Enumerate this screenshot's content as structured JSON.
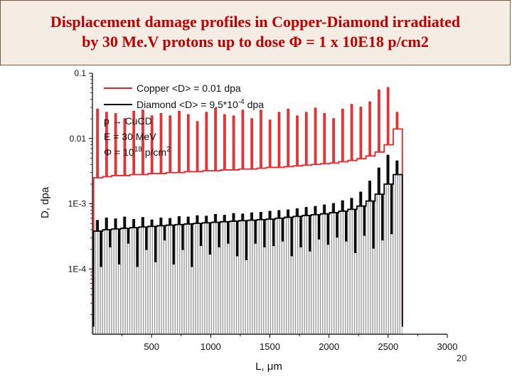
{
  "slide": {
    "title_line1": "Displacement damage profiles in Copper-Diamond irradiated",
    "title_line2": "by 30 Me.V protons up to dose Φ = 1 x 10E18 p/cm2",
    "page_number": "20"
  },
  "colors": {
    "copper": "#e8262a",
    "diamond": "#000000",
    "bar_fill": "#bfbfbf",
    "title": "#c00000"
  },
  "chart_data": {
    "type": "line",
    "xlabel": "L, μm",
    "ylabel": "D, dpa",
    "xlim": [
      0,
      3000
    ],
    "ylim": [
      1e-05,
      0.1
    ],
    "yscale": "log",
    "x_ticks": [
      500,
      1000,
      1500,
      2000,
      2500,
      3000
    ],
    "x_tick_labels": [
      "500",
      "1000",
      "1500",
      "2000",
      "2500",
      "3000"
    ],
    "y_ticks": [
      0.0001,
      0.001,
      0.01,
      0.1
    ],
    "y_tick_labels": [
      "1E-4",
      "1E-3",
      "0.01",
      "0.1"
    ],
    "legend": {
      "position": "top-left",
      "series_labels": [
        "Copper <D> = 0.01 dpa",
        "Diamond <D> = 9.5*10",
        "-4",
        " dpa"
      ],
      "notes": [
        "p → CuCD",
        "E = 30 MeV",
        "Φ = 10",
        "18",
        " p/cm",
        "2"
      ]
    },
    "series": [
      {
        "name": "Copper",
        "color": "#e8262a",
        "base": [
          0.0025,
          0.0026,
          0.0027,
          0.0027,
          0.0028,
          0.0028,
          0.0029,
          0.0029,
          0.003,
          0.003,
          0.0031,
          0.0031,
          0.0032,
          0.0032,
          0.0033,
          0.0033,
          0.0034,
          0.0034,
          0.0035,
          0.0036,
          0.0036,
          0.0037,
          0.0038,
          0.0039,
          0.004,
          0.0041,
          0.0042,
          0.0044,
          0.0046,
          0.0049,
          0.0054,
          0.0062,
          0.008,
          0.014
        ],
        "peaks": [
          0.028,
          0.025,
          0.024,
          0.02,
          0.026,
          0.027,
          0.022,
          0.024,
          0.022,
          0.026,
          0.023,
          0.018,
          0.025,
          0.029,
          0.023,
          0.022,
          0.027,
          0.02,
          0.027,
          0.019,
          0.025,
          0.028,
          0.022,
          0.025,
          0.029,
          0.024,
          0.02,
          0.028,
          0.033,
          0.03,
          0.036,
          0.055,
          0.06,
          0.025
        ]
      },
      {
        "name": "Diamond",
        "color": "#000000",
        "base": [
          0.00038,
          0.0004,
          0.00041,
          0.00042,
          0.00043,
          0.00044,
          0.00045,
          0.00046,
          0.00047,
          0.00048,
          0.00049,
          0.0005,
          0.00051,
          0.00052,
          0.00053,
          0.00054,
          0.00055,
          0.00056,
          0.00057,
          0.00058,
          0.0006,
          0.00062,
          0.00064,
          0.00066,
          0.00068,
          0.0007,
          0.00073,
          0.00077,
          0.00082,
          0.00092,
          0.0011,
          0.0014,
          0.002,
          0.0028
        ],
        "peaks": [
          0.00055,
          0.0006,
          0.00058,
          0.00062,
          0.00057,
          0.00061,
          0.00056,
          0.0006,
          0.00059,
          0.00063,
          0.00062,
          0.00065,
          0.00064,
          0.00068,
          0.00066,
          0.0007,
          0.00069,
          0.00072,
          0.00073,
          0.00076,
          0.00078,
          0.0008,
          0.00083,
          0.00087,
          0.0009,
          0.00095,
          0.001,
          0.0011,
          0.0012,
          0.0015,
          0.0022,
          0.0035,
          0.0055,
          0.0045
        ],
        "dips": [
          0.00011,
          0.00022,
          0.00012,
          0.00025,
          0.00011,
          0.0002,
          0.00013,
          0.00028,
          0.00012,
          0.0002,
          0.00011,
          0.00023,
          0.00017,
          0.00022,
          0.00025,
          0.00016,
          0.00014,
          0.00025,
          0.00022,
          0.00023,
          0.00027,
          0.00016,
          0.00022,
          0.00019,
          0.00029,
          0.00024,
          0.00031,
          0.00027,
          0.00018,
          0.00033,
          0.00021,
          0.00028,
          0.00035
        ]
      }
    ]
  }
}
